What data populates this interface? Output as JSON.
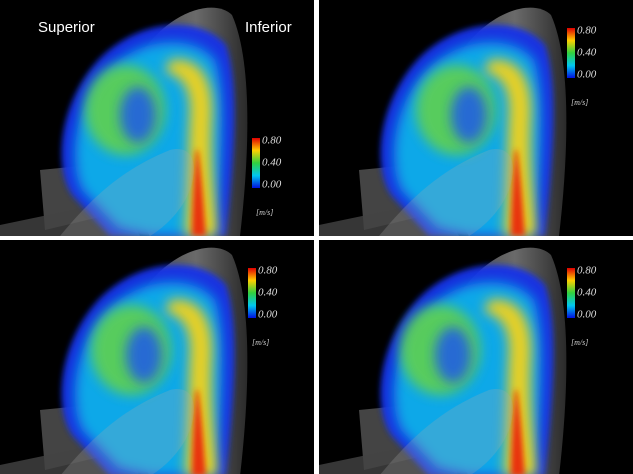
{
  "panels": [
    {
      "labels": [
        "Superior",
        "Inferior"
      ],
      "colorbar": {
        "ticks": [
          "0.80",
          "0.40",
          "0.00"
        ],
        "unit": "[m/s]"
      }
    },
    {
      "colorbar": {
        "ticks": [
          "0.80",
          "0.40",
          "0.00"
        ],
        "unit": "[m/s]"
      }
    },
    {
      "colorbar": {
        "ticks": [
          "0.80",
          "0.40",
          "0.00"
        ],
        "unit": "[m/s]"
      }
    },
    {
      "colorbar": {
        "ticks": [
          "0.80",
          "0.40",
          "0.00"
        ],
        "unit": "[m/s]"
      }
    }
  ]
}
